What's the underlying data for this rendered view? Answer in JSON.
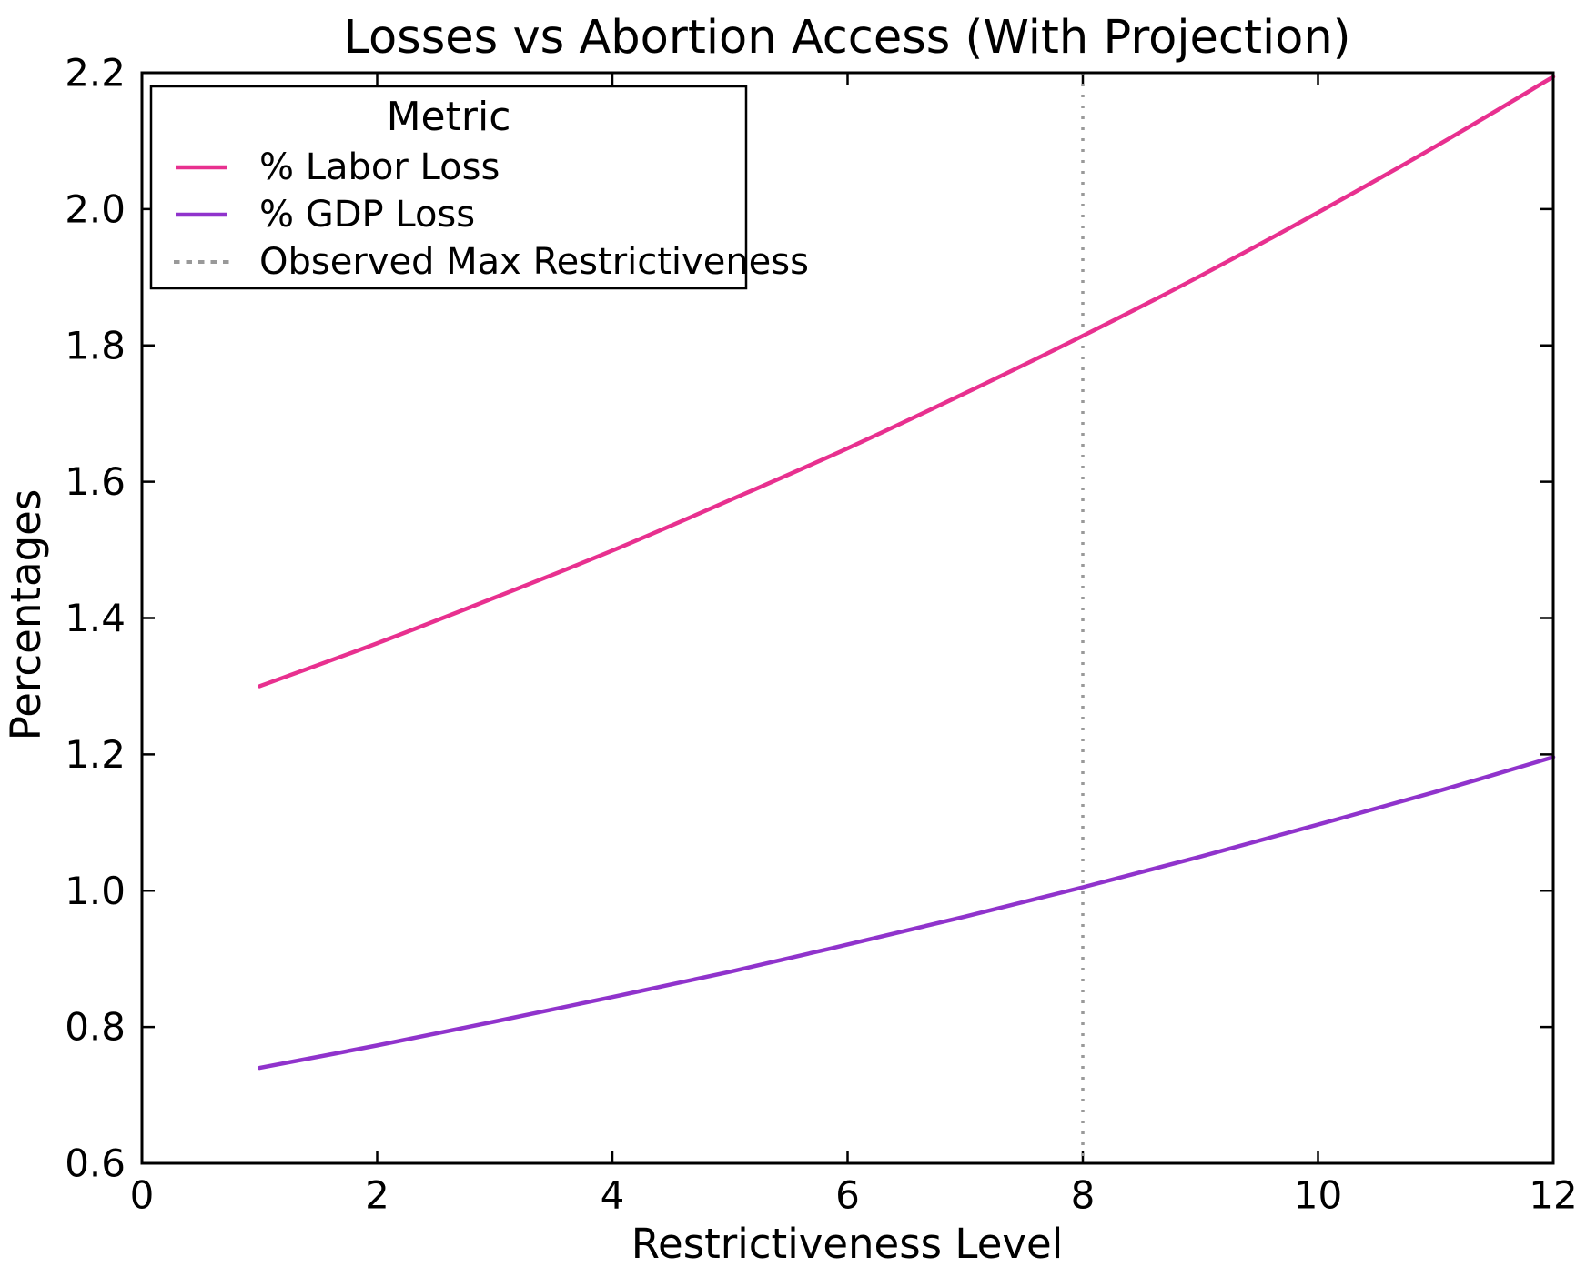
{
  "chart_data": {
    "type": "line",
    "title": "Losses vs Abortion Access (With Projection)",
    "xlabel": "Restrictiveness Level",
    "ylabel": "Percentages",
    "xlim": [
      0,
      12
    ],
    "ylim": [
      0.6,
      2.2
    ],
    "grid": false,
    "legend_position": "upper left",
    "legend_title": "Metric",
    "x": [
      1,
      2,
      3,
      4,
      5,
      6,
      7,
      8,
      9,
      10,
      11,
      12
    ],
    "series": [
      {
        "name": "% Labor Loss",
        "color": "#e8308f",
        "style": "solid",
        "values": [
          1.3,
          1.363,
          1.43,
          1.499,
          1.573,
          1.649,
          1.73,
          1.814,
          1.902,
          1.995,
          2.092,
          2.194
        ]
      },
      {
        "name": "% GDP Loss",
        "color": "#9033cc",
        "style": "solid",
        "values": [
          0.74,
          0.773,
          0.808,
          0.844,
          0.881,
          0.921,
          0.962,
          1.005,
          1.05,
          1.097,
          1.145,
          1.196
        ]
      }
    ],
    "vline": {
      "x": 8,
      "label": "Observed Max Restrictiveness",
      "color": "#999999",
      "style": "dotted"
    },
    "xticks": [
      0,
      2,
      4,
      6,
      8,
      10,
      12
    ],
    "xtick_labels": [
      "0",
      "2",
      "4",
      "6",
      "8",
      "10",
      "12"
    ],
    "yticks": [
      0.6,
      0.8,
      1.0,
      1.2,
      1.4,
      1.6,
      1.8,
      2.0,
      2.2
    ],
    "ytick_labels": [
      "0.6",
      "0.8",
      "1.0",
      "1.2",
      "1.4",
      "1.6",
      "1.8",
      "2.0",
      "2.2"
    ]
  },
  "legend": {
    "title": "Metric",
    "entries": [
      {
        "label": "% Labor Loss",
        "color": "#e8308f",
        "style": "solid"
      },
      {
        "label": "% GDP Loss",
        "color": "#9033cc",
        "style": "solid"
      },
      {
        "label": "Observed Max Restrictiveness",
        "color": "#999999",
        "style": "dotted"
      }
    ]
  }
}
